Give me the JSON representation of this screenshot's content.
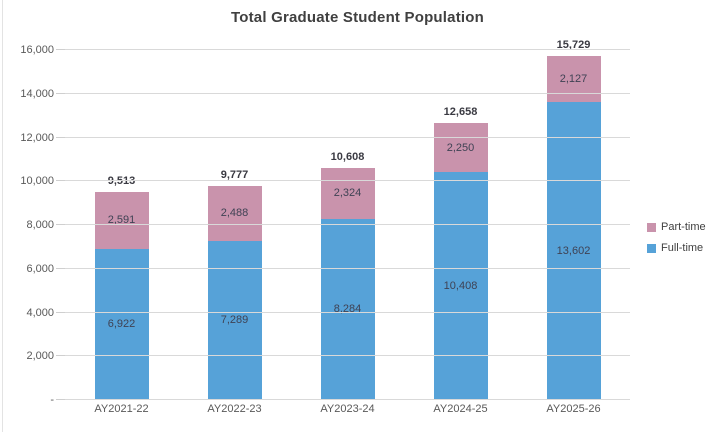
{
  "chart_data": {
    "type": "bar",
    "stacked": true,
    "title": "Total Graduate Student Population",
    "categories": [
      "AY2021-22",
      "AY2022-23",
      "AY2023-24",
      "AY2024-25",
      "AY2025-26"
    ],
    "series": [
      {
        "name": "Full-time",
        "color": "#56a2d8",
        "values": [
          6922,
          7289,
          8284,
          10408,
          13602
        ]
      },
      {
        "name": "Part-time",
        "color": "#c993ac",
        "values": [
          2591,
          2488,
          2324,
          2250,
          2127
        ]
      }
    ],
    "totals": [
      9513,
      9777,
      10608,
      12658,
      15729
    ],
    "xlabel": "",
    "ylabel": "",
    "ylim": [
      0,
      16000
    ],
    "ytick_step": 2000,
    "ytick_labels": [
      "-",
      "2,000",
      "4,000",
      "6,000",
      "8,000",
      "10,000",
      "12,000",
      "14,000",
      "16,000"
    ],
    "grid": true,
    "legend": {
      "position": "right",
      "entries": [
        {
          "label": "Part-time",
          "color": "#c993ac"
        },
        {
          "label": "Full-time",
          "color": "#56a2d8"
        }
      ]
    },
    "colors": {
      "gridline": "#d9d9d9",
      "axis_text": "#595959",
      "title_text": "#404040"
    }
  }
}
